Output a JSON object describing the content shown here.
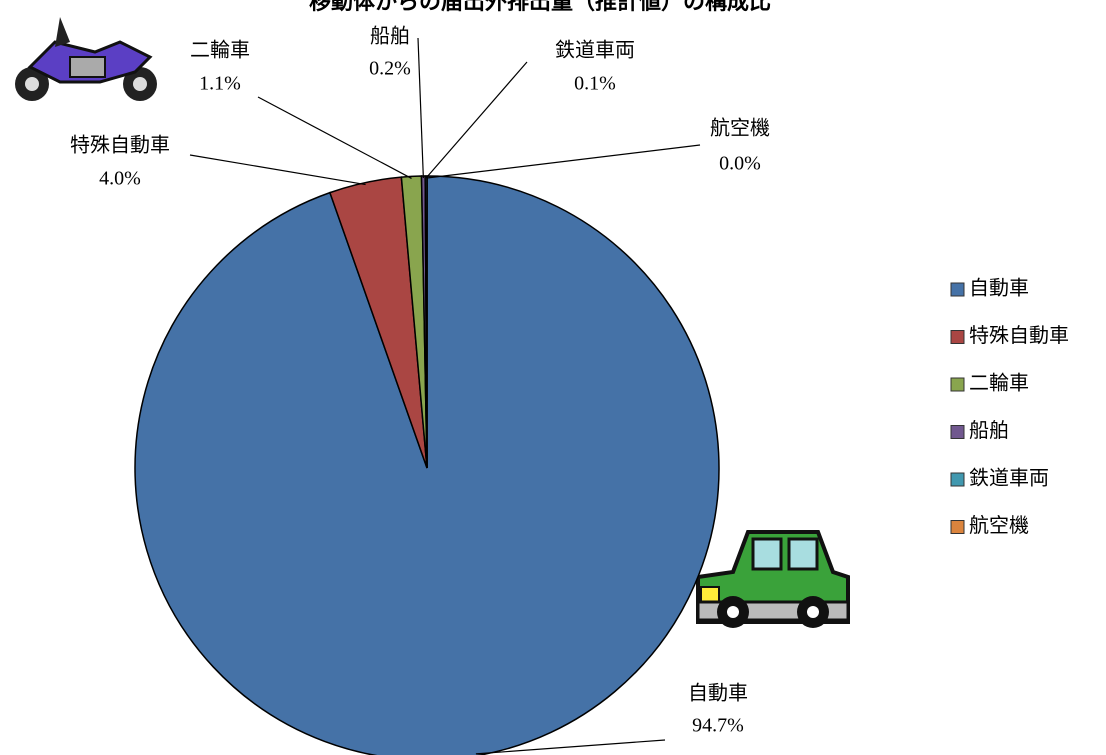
{
  "chart_data": {
    "type": "pie",
    "title": "移動体からの届出外排出量（推計値）の構成比",
    "categories": [
      "自動車",
      "特殊自動車",
      "二輪車",
      "船舶",
      "鉄道車両",
      "航空機"
    ],
    "values": [
      94.7,
      4.0,
      1.1,
      0.2,
      0.1,
      0.0
    ],
    "value_labels": [
      "94.7%",
      "4.0%",
      "1.1%",
      "0.2%",
      "0.1%",
      "0.0%"
    ],
    "colors": [
      "#4572a7",
      "#aa4643",
      "#89a54e",
      "#71588f",
      "#4198af",
      "#db843d"
    ],
    "legend": "right"
  }
}
